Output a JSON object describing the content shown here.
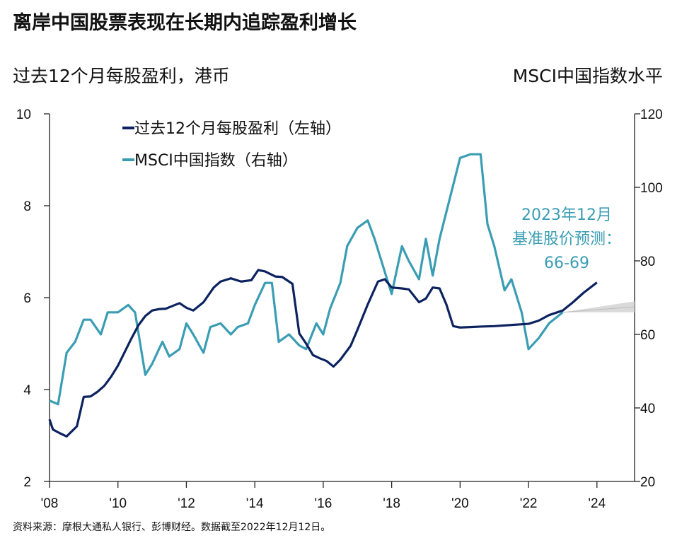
{
  "header": {
    "title": "离岸中国股票表现在长期内追踪盈利增长",
    "left_axis_unit": "过去12个月每股盈利，港币",
    "right_axis_unit": "MSCI中国指数水平"
  },
  "footer": {
    "source": "资料来源：摩根大通私人银行、彭博财经。数据截至2022年12月12日。"
  },
  "colors": {
    "eps_line": "#0d2360",
    "index_line": "#3a9db3",
    "forecast_band": "#d4d4d4",
    "annotation": "#3a9db3",
    "axis": "#222222"
  },
  "chart_data": {
    "type": "line",
    "x_ticks": [
      {
        "x": 2008,
        "label": "'08"
      },
      {
        "x": 2010,
        "label": "'10"
      },
      {
        "x": 2012,
        "label": "'12"
      },
      {
        "x": 2014,
        "label": "'14"
      },
      {
        "x": 2016,
        "label": "'16"
      },
      {
        "x": 2018,
        "label": "'18"
      },
      {
        "x": 2020,
        "label": "'20"
      },
      {
        "x": 2022,
        "label": "'22"
      },
      {
        "x": 2024,
        "label": "'24"
      }
    ],
    "xlim": [
      2008,
      2025.1
    ],
    "left_axis": {
      "ylim": [
        2,
        10
      ],
      "ticks": [
        2,
        4,
        6,
        8,
        10
      ]
    },
    "right_axis": {
      "ylim": [
        20,
        120
      ],
      "ticks": [
        20,
        40,
        60,
        80,
        100,
        120
      ]
    },
    "legend": {
      "position": "top-left",
      "items": [
        {
          "label": "过去12个月每股盈利（左轴）",
          "series": "eps"
        },
        {
          "label": "MSCI中国指数（右轴）",
          "series": "index"
        }
      ]
    },
    "series": [
      {
        "id": "eps",
        "axis": "left",
        "x": [
          2008.0,
          2008.1,
          2008.3,
          2008.5,
          2008.8,
          2009.0,
          2009.2,
          2009.4,
          2009.6,
          2009.8,
          2010.0,
          2010.2,
          2010.4,
          2010.6,
          2010.8,
          2011.0,
          2011.2,
          2011.4,
          2011.6,
          2011.8,
          2012.0,
          2012.2,
          2012.5,
          2012.8,
          2013.0,
          2013.3,
          2013.6,
          2013.9,
          2014.1,
          2014.3,
          2014.6,
          2014.8,
          2015.1,
          2015.3,
          2015.5,
          2015.7,
          2015.9,
          2016.1,
          2016.3,
          2016.5,
          2016.8,
          2017.0,
          2017.3,
          2017.6,
          2017.8,
          2018.0,
          2018.3,
          2018.5,
          2018.8,
          2019.0,
          2019.2,
          2019.4,
          2019.6,
          2019.8,
          2020.0,
          2020.3,
          2020.6,
          2021.0,
          2021.4,
          2021.8,
          2022.0,
          2022.3,
          2022.6,
          2023.0,
          2023.3,
          2023.6,
          2024.0
        ],
        "y": [
          3.35,
          3.13,
          3.05,
          2.98,
          3.2,
          3.84,
          3.85,
          3.95,
          4.08,
          4.28,
          4.52,
          4.82,
          5.12,
          5.4,
          5.6,
          5.72,
          5.75,
          5.76,
          5.82,
          5.88,
          5.78,
          5.72,
          5.9,
          6.22,
          6.35,
          6.42,
          6.35,
          6.38,
          6.6,
          6.57,
          6.46,
          6.45,
          6.3,
          5.22,
          5.0,
          4.75,
          4.68,
          4.62,
          4.5,
          4.65,
          4.95,
          5.3,
          5.85,
          6.35,
          6.4,
          6.22,
          6.2,
          6.18,
          5.9,
          5.98,
          6.22,
          6.2,
          5.85,
          5.38,
          5.35,
          5.36,
          5.37,
          5.38,
          5.4,
          5.42,
          5.43,
          5.5,
          5.62,
          5.72,
          5.9,
          6.1,
          6.33
        ]
      },
      {
        "id": "index",
        "axis": "right",
        "x": [
          2008.0,
          2008.25,
          2008.5,
          2008.75,
          2009.0,
          2009.2,
          2009.5,
          2009.7,
          2010.0,
          2010.3,
          2010.5,
          2010.8,
          2011.0,
          2011.3,
          2011.5,
          2011.8,
          2012.0,
          2012.2,
          2012.5,
          2012.7,
          2013.0,
          2013.3,
          2013.5,
          2013.8,
          2014.0,
          2014.3,
          2014.5,
          2014.7,
          2015.0,
          2015.3,
          2015.5,
          2015.8,
          2016.0,
          2016.2,
          2016.5,
          2016.7,
          2017.0,
          2017.3,
          2017.5,
          2017.7,
          2018.0,
          2018.3,
          2018.5,
          2018.8,
          2019.0,
          2019.2,
          2019.4,
          2019.7,
          2020.0,
          2020.3,
          2020.6,
          2020.8,
          2021.0,
          2021.3,
          2021.5,
          2021.8,
          2022.0,
          2022.3,
          2022.6,
          2023.0
        ],
        "y": [
          42,
          41,
          55,
          58,
          64,
          64,
          60,
          66,
          66,
          68,
          66,
          49,
          52,
          58,
          54,
          56,
          63,
          60,
          55,
          62,
          63,
          60,
          62,
          63,
          68,
          74,
          74,
          58,
          60,
          57,
          56,
          63,
          60,
          67,
          74,
          84,
          89,
          91,
          86,
          80,
          71,
          84,
          80,
          75,
          86,
          76,
          86,
          97,
          108,
          109,
          109,
          90,
          84,
          72,
          75,
          66,
          56,
          59,
          63,
          66
        ]
      },
      {
        "id": "forecast_band",
        "axis": "right",
        "x": [
          2023.0,
          2025.1
        ],
        "y_low": [
          66,
          66
        ],
        "y_high": [
          66,
          69
        ],
        "y_mid": [
          66,
          67.5
        ]
      }
    ],
    "annotations": [
      {
        "lines": [
          "2023年12月",
          "基准股价预测：",
          "66-69"
        ],
        "anchor_x": 2023.9,
        "anchor_y_right": 84
      }
    ]
  }
}
